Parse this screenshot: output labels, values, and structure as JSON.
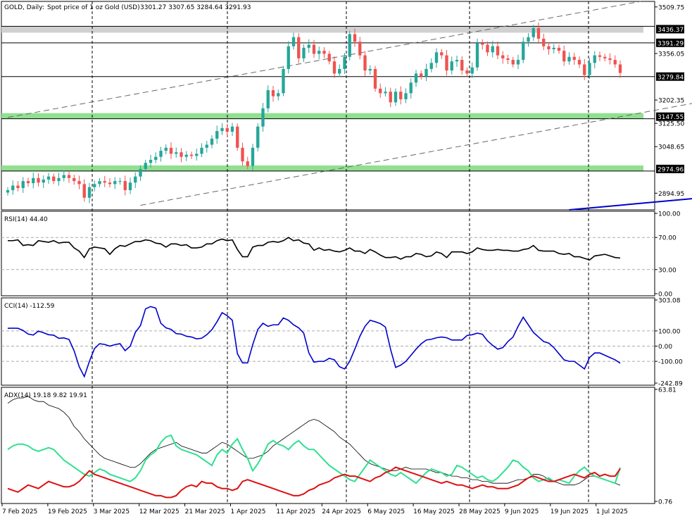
{
  "header": {
    "symbol": "GOLD, Daily:",
    "description": "Spot price of 1 oz Gold (USD)",
    "ohlc": "3301.27 3307.65 3284.64 3291.93"
  },
  "chart_data": {
    "type": "candlestick",
    "x_labels": [
      "7 Feb 2025",
      "19 Feb 2025",
      "3 Mar 2025",
      "12 Mar 2025",
      "21 Mar 2025",
      "1 Apr 2025",
      "11 Apr 2025",
      "24 Apr 2025",
      "6 May 2025",
      "16 May 2025",
      "28 May 2025",
      "9 Jun 2025",
      "19 Jun 2025",
      "1 Jul 2025"
    ],
    "price_axis": {
      "ylim": [
        2840,
        3528
      ],
      "ticks": [
        3509.75,
        3356.05,
        3202.35,
        3125.5,
        3048.65,
        2894.95
      ]
    },
    "levels": [
      {
        "value": 3436.37,
        "label": "3436.37",
        "style": "grey-band"
      },
      {
        "value": 3391.29,
        "label": "3391.29",
        "style": "line"
      },
      {
        "value": 3279.84,
        "label": "3279.84",
        "style": "line"
      },
      {
        "value": 3147.55,
        "label": "3147.55",
        "style": "green-band"
      },
      {
        "value": 2974.96,
        "label": "2974.96",
        "style": "green-band"
      }
    ],
    "channel_lines": [
      {
        "from": [
          0,
          3145
        ],
        "to": [
          124,
          3528
        ]
      },
      {
        "from": [
          26,
          2855
        ],
        "to": [
          170,
          3303
        ]
      }
    ],
    "ma_line": [
      [
        110,
        2840
      ],
      [
        140,
        2886
      ],
      [
        175,
        2943
      ],
      [
        179,
        2948
      ]
    ],
    "closes": [
      2905,
      2920,
      2912,
      2935,
      2928,
      2945,
      2930,
      2940,
      2950,
      2935,
      2945,
      2955,
      2945,
      2935,
      2925,
      2880,
      2915,
      2925,
      2935,
      2930,
      2925,
      2935,
      2935,
      2905,
      2930,
      2950,
      2975,
      2995,
      3005,
      3015,
      3035,
      3045,
      3025,
      3030,
      3015,
      3022,
      3018,
      3025,
      3045,
      3055,
      3075,
      3100,
      3110,
      3098,
      3115,
      3045,
      3000,
      2985,
      3045,
      3115,
      3175,
      3235,
      3215,
      3225,
      3305,
      3380,
      3410,
      3340,
      3375,
      3385,
      3355,
      3365,
      3355,
      3330,
      3290,
      3305,
      3345,
      3420,
      3395,
      3350,
      3300,
      3305,
      3240,
      3225,
      3230,
      3195,
      3230,
      3205,
      3225,
      3260,
      3290,
      3280,
      3305,
      3325,
      3360,
      3350,
      3300,
      3330,
      3335,
      3300,
      3290,
      3310,
      3390,
      3385,
      3360,
      3380,
      3350,
      3340,
      3335,
      3320,
      3335,
      3395,
      3410,
      3440,
      3405,
      3380,
      3370,
      3375,
      3365,
      3330,
      3345,
      3335,
      3320,
      3285,
      3325,
      3350,
      3345,
      3340,
      3335,
      3320,
      3291.93
    ],
    "indicators": {
      "rsi": {
        "label": "RSI(14) 44.40",
        "ylim": [
          0,
          100
        ],
        "ticks": [
          100,
          70,
          30,
          0
        ],
        "values": [
          66,
          66,
          67,
          60,
          61,
          60,
          66,
          65,
          64,
          66,
          63,
          64,
          64,
          57,
          53,
          45,
          56,
          58,
          57,
          56,
          49,
          56,
          60,
          59,
          62,
          65,
          65,
          67,
          66,
          63,
          62,
          58,
          62,
          62,
          60,
          61,
          57,
          57,
          58,
          62,
          62,
          66,
          68,
          66,
          67,
          55,
          46,
          46,
          58,
          60,
          60,
          64,
          65,
          64,
          66,
          70,
          66,
          67,
          63,
          62,
          54,
          57,
          54,
          55,
          53,
          52,
          54,
          57,
          53,
          53,
          50,
          55,
          52,
          48,
          45,
          45,
          46,
          43,
          46,
          46,
          50,
          49,
          46,
          47,
          52,
          50,
          45,
          52,
          52,
          52,
          50,
          52,
          57,
          55,
          54,
          54,
          55,
          54,
          54,
          53,
          53,
          55,
          56,
          60,
          54,
          53,
          53,
          53,
          50,
          49,
          50,
          46,
          46,
          44,
          42,
          47,
          48,
          49,
          47,
          45,
          44.4
        ]
      },
      "cci": {
        "label": "CCI(14) -112.59",
        "ylim": [
          -242.89,
          303.08
        ],
        "ticks": [
          303.08,
          100.0,
          0.0,
          -100.0,
          -242.89
        ],
        "values": [
          117,
          118,
          117,
          103,
          79,
          73,
          99,
          88,
          75,
          72,
          51,
          54,
          44,
          -30,
          -135,
          -200,
          -100,
          -16,
          16,
          11,
          0,
          10,
          16,
          -30,
          0,
          90,
          135,
          245,
          260,
          250,
          150,
          120,
          110,
          82,
          79,
          65,
          60,
          48,
          52,
          75,
          108,
          160,
          220,
          200,
          170,
          -50,
          -110,
          -110,
          10,
          110,
          150,
          130,
          140,
          140,
          185,
          170,
          140,
          120,
          85,
          -45,
          -105,
          -100,
          -100,
          -80,
          -90,
          -135,
          -150,
          -100,
          -20,
          65,
          130,
          170,
          160,
          148,
          125,
          -20,
          -140,
          -125,
          -100,
          -60,
          -20,
          15,
          40,
          45,
          55,
          60,
          55,
          40,
          40,
          40,
          70,
          75,
          85,
          78,
          35,
          5,
          -20,
          -10,
          30,
          60,
          130,
          190,
          140,
          90,
          60,
          30,
          20,
          -10,
          -50,
          -90,
          -100,
          -100,
          -125,
          -150,
          -75,
          -45,
          -45,
          -60,
          -75,
          -90,
          -112.59
        ]
      },
      "adx": {
        "label": "ADX(14) 19.18 9.82 19.91",
        "ylim": [
          0.76,
          63.81
        ],
        "ticks": [
          63.81,
          0.76
        ],
        "adx": [
          56,
          58,
          59,
          59,
          60,
          58,
          57,
          57,
          55,
          54,
          53,
          51,
          48,
          43,
          40,
          36,
          33,
          30,
          27,
          25,
          24,
          23,
          22,
          21,
          20,
          20,
          22,
          25,
          28,
          30,
          31,
          32,
          33,
          34,
          32,
          31,
          30,
          29,
          28,
          28,
          30,
          32,
          34,
          33,
          31,
          29,
          27,
          25,
          25,
          26,
          27,
          29,
          32,
          34,
          36,
          38,
          40,
          42,
          44,
          46,
          47,
          46,
          44,
          42,
          40,
          37,
          35,
          33,
          30,
          27,
          24,
          22,
          21,
          20,
          19,
          18,
          18,
          19,
          20,
          19,
          19,
          19,
          19,
          18,
          17,
          17,
          16,
          15,
          15,
          14,
          14,
          13,
          13,
          12,
          12,
          11,
          11,
          11,
          11,
          12,
          13,
          13,
          14,
          16,
          16,
          15,
          13,
          12,
          11,
          10,
          10,
          10,
          11,
          13,
          15,
          15,
          14,
          13,
          12,
          11,
          9.82
        ],
        "di_plus": [
          30,
          32,
          33,
          33,
          32,
          30,
          29,
          30,
          31,
          30,
          27,
          24,
          22,
          20,
          18,
          16,
          15,
          17,
          19,
          18,
          16,
          15,
          14,
          13,
          12,
          14,
          18,
          24,
          27,
          29,
          34,
          37,
          38,
          32,
          30,
          29,
          28,
          27,
          25,
          23,
          21,
          27,
          30,
          28,
          33,
          36,
          30,
          25,
          18,
          22,
          27,
          33,
          35,
          33,
          32,
          30,
          33,
          35,
          32,
          30,
          30,
          27,
          24,
          21,
          19,
          17,
          15,
          13,
          12,
          16,
          20,
          24,
          22,
          20,
          18,
          16,
          15,
          17,
          15,
          13,
          11,
          14,
          17,
          19,
          18,
          17,
          15,
          16,
          21,
          20,
          18,
          16,
          14,
          15,
          13,
          12,
          14,
          17,
          20,
          24,
          23,
          20,
          18,
          14,
          12,
          13,
          14,
          12,
          13,
          12,
          11,
          15,
          18,
          20,
          17,
          15,
          14,
          13,
          12,
          11,
          19.91
        ],
        "di_minus": [
          8,
          7,
          6,
          8,
          10,
          9,
          8,
          10,
          12,
          11,
          10,
          9,
          9,
          10,
          12,
          15,
          18,
          16,
          15,
          14,
          13,
          12,
          11,
          10,
          9,
          8,
          7,
          6,
          5,
          4,
          4,
          3,
          3,
          4,
          7,
          9,
          10,
          9,
          12,
          11,
          11,
          9,
          8,
          8,
          7,
          8,
          12,
          13,
          12,
          11,
          10,
          9,
          8,
          7,
          6,
          5,
          4,
          4,
          5,
          7,
          8,
          10,
          11,
          12,
          14,
          15,
          16,
          15,
          15,
          14,
          13,
          12,
          14,
          15,
          17,
          18,
          20,
          19,
          18,
          17,
          16,
          15,
          14,
          13,
          12,
          11,
          12,
          11,
          10,
          10,
          9,
          8,
          9,
          10,
          9,
          9,
          8,
          8,
          8,
          9,
          10,
          12,
          14,
          15,
          14,
          13,
          12,
          12,
          13,
          14,
          15,
          16,
          15,
          14,
          16,
          17,
          15,
          16,
          15,
          15,
          19.18
        ]
      }
    }
  }
}
